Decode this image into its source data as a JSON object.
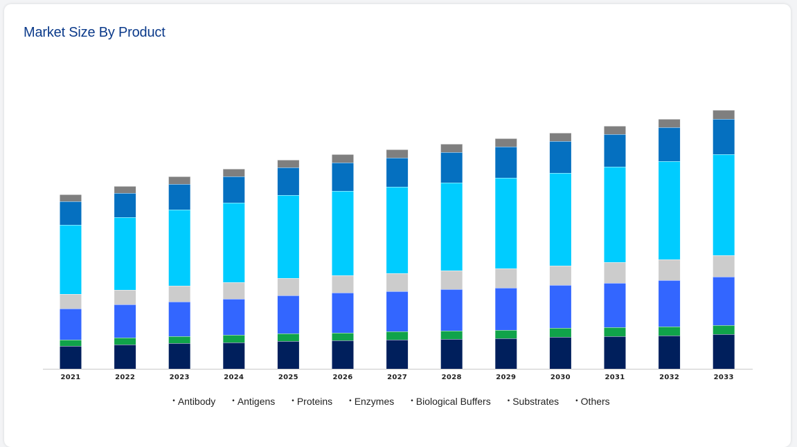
{
  "page": {
    "title": "Market Size By Product"
  },
  "chart_data": {
    "type": "bar",
    "stacked": true,
    "title": "Market Size By Product",
    "xlabel": "",
    "ylabel": "",
    "grid": false,
    "legend_position": "bottom",
    "categories": [
      "2021",
      "2022",
      "2023",
      "2024",
      "2025",
      "2026",
      "2027",
      "2028",
      "2029",
      "2030",
      "2031",
      "2032",
      "2033"
    ],
    "ylim": [
      0,
      390
    ],
    "series": [
      {
        "name": "Antibody",
        "color": "#001f5c",
        "values": [
          33,
          35,
          37,
          38,
          40,
          41,
          42,
          43,
          44,
          46,
          47,
          48,
          50
        ]
      },
      {
        "name": "Antigens",
        "color": "#10a34a",
        "values": [
          9,
          10,
          10,
          11,
          11,
          11,
          12,
          12,
          12,
          13,
          13,
          13,
          13
        ]
      },
      {
        "name": "Proteins",
        "color": "#3366ff",
        "values": [
          45,
          48,
          50,
          52,
          55,
          58,
          58,
          60,
          61,
          62,
          64,
          67,
          70
        ]
      },
      {
        "name": "Enzymes",
        "color": "#cccccc",
        "values": [
          21,
          21,
          23,
          24,
          25,
          25,
          26,
          27,
          28,
          28,
          30,
          30,
          31
        ]
      },
      {
        "name": "Biological Buffers",
        "color": "#00ccff",
        "values": [
          100,
          105,
          110,
          115,
          120,
          122,
          125,
          127,
          131,
          134,
          138,
          142,
          146
        ]
      },
      {
        "name": "Substrates",
        "color": "#0570c0",
        "values": [
          34,
          35,
          37,
          38,
          40,
          41,
          42,
          44,
          45,
          46,
          47,
          49,
          51
        ]
      },
      {
        "name": "Others",
        "color": "#7f7f7f",
        "values": [
          10,
          10,
          11,
          11,
          11,
          12,
          12,
          12,
          12,
          12,
          12,
          12,
          13
        ]
      }
    ]
  }
}
